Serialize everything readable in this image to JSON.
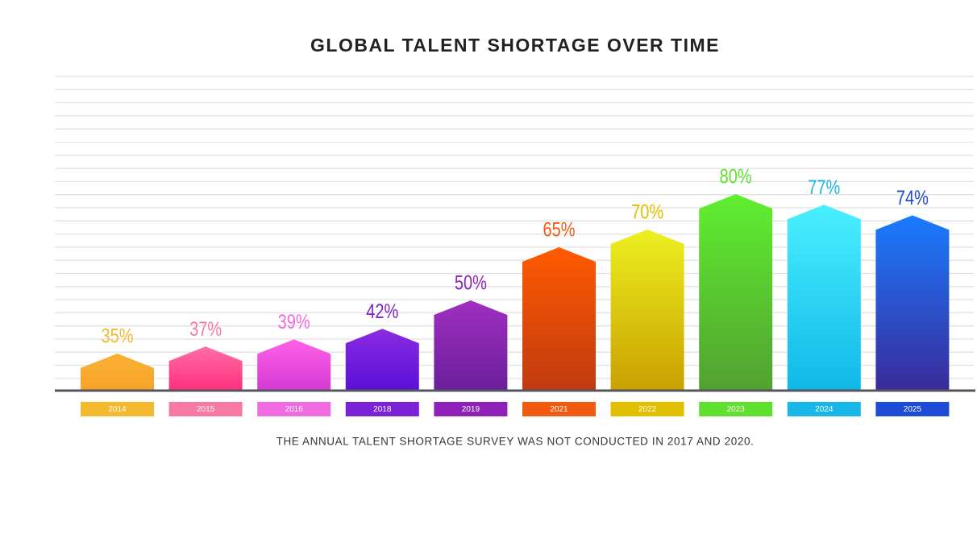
{
  "chart_data": {
    "type": "house-bar",
    "title": "GLOBAL TALENT SHORTAGE OVER TIME",
    "note": "THE ANNUAL TALENT SHORTAGE SURVEY WAS NOT CONDUCTED IN 2017 AND 2020.",
    "categories": [
      "2014",
      "2015",
      "2016",
      "2018",
      "2019",
      "2021",
      "2022",
      "2023",
      "2024",
      "2025"
    ],
    "values": [
      35,
      37,
      39,
      42,
      50,
      65,
      70,
      80,
      77,
      74
    ],
    "value_labels": [
      "35%",
      "37%",
      "39%",
      "42%",
      "50%",
      "65%",
      "70%",
      "80%",
      "77%",
      "74%"
    ],
    "colors": [
      "#f9b233",
      "#ff6fa5",
      "#ff62e6",
      "#8a2be2",
      "#a02fc0",
      "#ff5a00",
      "#ecf020",
      "#60f030",
      "#4af0ff",
      "#1a7cff"
    ],
    "colors_bottom": [
      "#f7a22a",
      "#ff2f7e",
      "#d53ad3",
      "#5a10d8",
      "#6a1f9a",
      "#c03a10",
      "#c9a000",
      "#52a030",
      "#10b8e8",
      "#3a2b9a"
    ],
    "label_colors": [
      "#f5b92f",
      "#f77aa6",
      "#f06ae0",
      "#7c22d6",
      "#8e22b8",
      "#f25a10",
      "#e0c000",
      "#5fe02f",
      "#19b6e8",
      "#1e4bd6"
    ],
    "grid": true
  }
}
